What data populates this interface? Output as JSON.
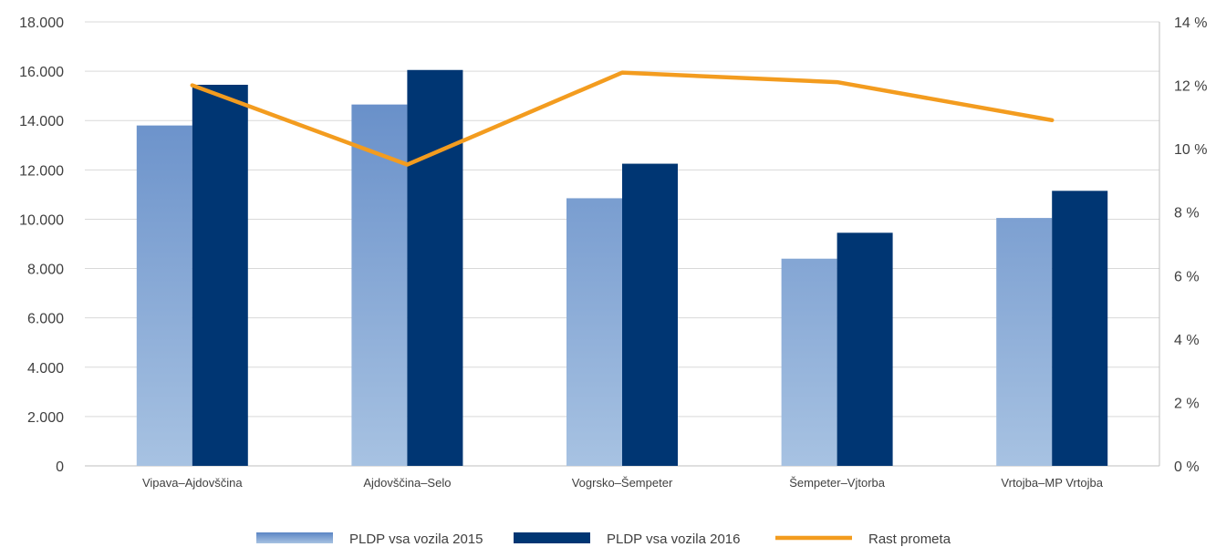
{
  "chart_data": {
    "type": "bar",
    "categories": [
      "Vipava–Ajdovščina",
      "Ajdovščina–Selo",
      "Vogrsko–Šempeter",
      "Šempeter–Vjtorba",
      "Vrtojba–MP Vrtojba"
    ],
    "series": [
      {
        "name": "PLDP vsa vozila 2015",
        "type": "bar",
        "axis": "left",
        "color": "#5b85c4",
        "color_light": "#a7c2e2",
        "values": [
          13800,
          14650,
          10850,
          8400,
          10050
        ]
      },
      {
        "name": "PLDP vsa vozila 2016",
        "type": "bar",
        "axis": "left",
        "color": "#003673",
        "values": [
          15450,
          16050,
          12250,
          9450,
          11150
        ]
      },
      {
        "name": "Rast prometa",
        "type": "line",
        "axis": "right",
        "color": "#f39c1f",
        "values": [
          12.0,
          9.5,
          12.4,
          12.1,
          10.9
        ]
      }
    ],
    "y_left": {
      "ylim": [
        0,
        18000
      ],
      "ticks": [
        0,
        2000,
        4000,
        6000,
        8000,
        10000,
        12000,
        14000,
        16000,
        18000
      ],
      "tick_labels": [
        "0",
        "2.000",
        "4.000",
        "6.000",
        "8.000",
        "10.000",
        "12.000",
        "14.000",
        "16.000",
        "18.000"
      ]
    },
    "y_right": {
      "ylim": [
        0,
        14
      ],
      "ticks": [
        0,
        2,
        4,
        6,
        8,
        10,
        12,
        14
      ],
      "tick_labels": [
        "0 %",
        "2 %",
        "4 %",
        "6 %",
        "8 %",
        "10 %",
        "12 %",
        "14 %"
      ]
    },
    "grid": true,
    "legend": "bottom",
    "title": "",
    "xlabel": "",
    "ylabel": ""
  }
}
